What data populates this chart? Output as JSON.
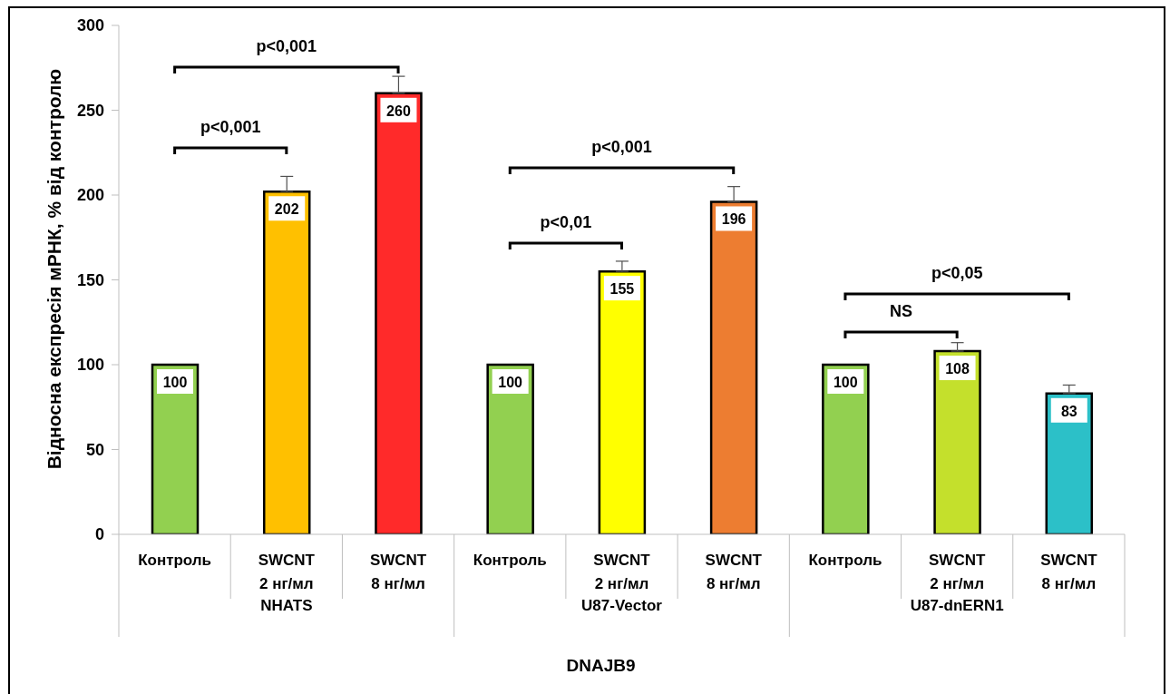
{
  "chart_data": {
    "type": "bar",
    "ylabel": "Відносна експресія мРНК, % від контролю",
    "xlabel": "DNAJB9",
    "categories": [
      "Контроль",
      "SWCNT 2 нг/мл",
      "SWCNT 8 нг/мл",
      "Контроль",
      "SWCNT 2 нг/мл",
      "SWCNT 8 нг/мл",
      "Контроль",
      "SWCNT 2 нг/мл",
      "SWCNT 8 нг/мл"
    ],
    "values": [
      100,
      202,
      260,
      100,
      155,
      196,
      100,
      108,
      83
    ],
    "colors": [
      "#92d050",
      "#ffc000",
      "#ff2a2a",
      "#92d050",
      "#ffff00",
      "#ed7d31",
      "#92d050",
      "#c4e02c",
      "#2cc0c8"
    ],
    "errors": [
      null,
      [
        202,
        211
      ],
      [
        260,
        270
      ],
      null,
      [
        155,
        161
      ],
      [
        196,
        205
      ],
      null,
      [
        108,
        113
      ],
      [
        83,
        88
      ]
    ],
    "data_labels": true,
    "ylim": [
      0,
      300
    ],
    "yticks": [
      0,
      50,
      100,
      150,
      200,
      250,
      300
    ],
    "annotations": [
      "p<0,001",
      "p<0,001",
      "p<0,01",
      "p<0,001",
      "NS",
      "p<0,05",
      "NHATS",
      "U87-Vector",
      "U87-dnERN1"
    ]
  }
}
